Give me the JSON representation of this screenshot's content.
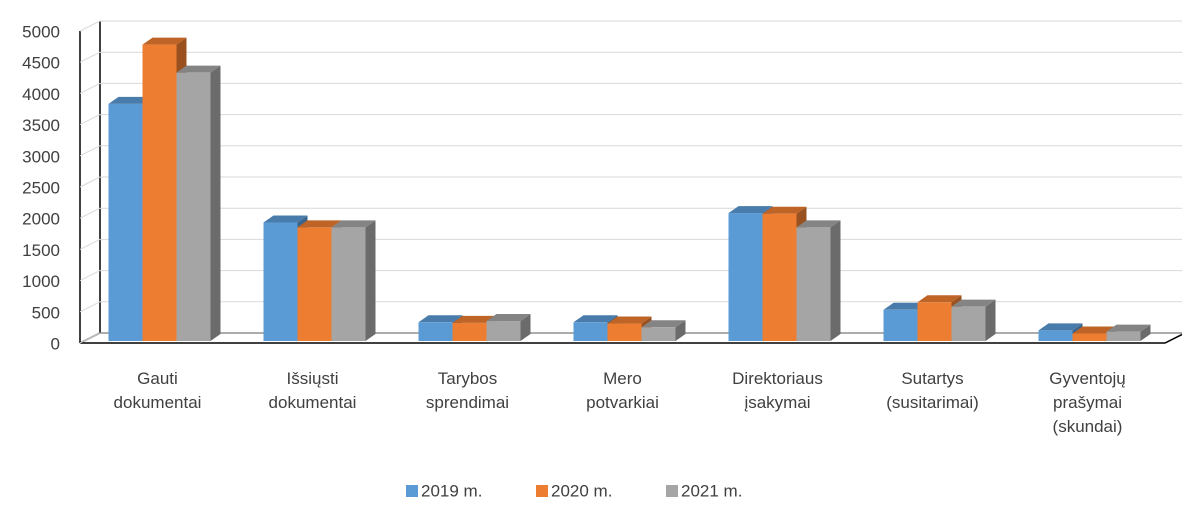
{
  "chart_data": {
    "type": "bar3d",
    "categories": [
      "Gauti dokumentai",
      "Išsiųsti dokumentai",
      "Tarybos sprendimai",
      "Mero potvarkiai",
      "Direktoriaus įsakymai",
      "Sutartys (susitarimai)",
      "Gyventojų prašymai (skundai)"
    ],
    "series": [
      {
        "name": "2019 m.",
        "color": "#5b9bd5",
        "values": [
          3800,
          1900,
          300,
          300,
          2050,
          500,
          170
        ]
      },
      {
        "name": "2020 m.",
        "color": "#ed7d31",
        "values": [
          4750,
          1820,
          290,
          280,
          2040,
          620,
          120
        ]
      },
      {
        "name": "2021 m.",
        "color": "#a5a5a5",
        "values": [
          4300,
          1820,
          320,
          220,
          1820,
          550,
          150
        ]
      }
    ],
    "ylim": [
      0,
      5000
    ],
    "yticks": [
      0,
      500,
      1000,
      1500,
      2000,
      2500,
      3000,
      3500,
      4000,
      4500,
      5000
    ],
    "grid": true,
    "legend": "bottom"
  }
}
